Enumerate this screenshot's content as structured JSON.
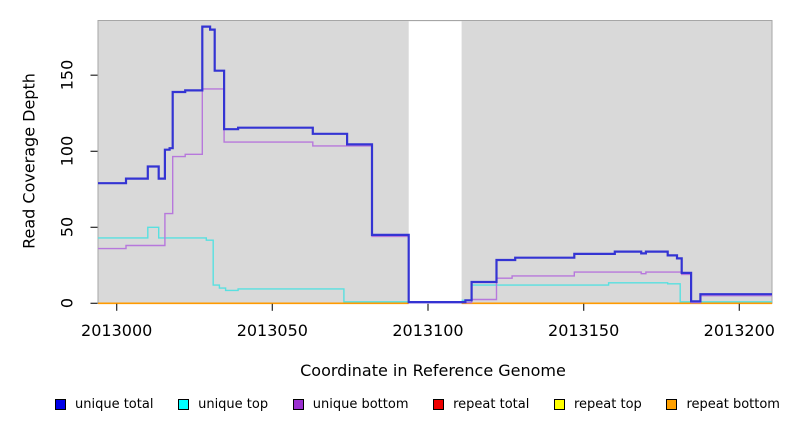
{
  "chart_data": {
    "type": "line",
    "subtype": "step-coverage",
    "title": "",
    "xlabel": "Coordinate in Reference Genome",
    "ylabel": "Read Coverage Depth",
    "xlim": [
      2012994,
      2013210.5
    ],
    "ylim": [
      0,
      186
    ],
    "x_ticks": [
      2013000,
      2013050,
      2013100,
      2013150,
      2013200
    ],
    "x_tick_labels": [
      "2013000",
      "2013050",
      "2013100",
      "2013150",
      "2013200"
    ],
    "y_ticks": [
      0,
      50,
      100,
      150
    ],
    "y_tick_labels": [
      "0",
      "50",
      "100",
      "150"
    ],
    "grid": false,
    "plot_background": "#d9d9d9",
    "plot_border_color": "#a6a6a6",
    "tick_color": "#262626",
    "legend_position": "bottom",
    "masked_region": {
      "start": 2013093.8,
      "end": 2013110.8,
      "color": "#ffffff"
    },
    "series": [
      {
        "name": "unique total",
        "color": "#3434d3",
        "legend_fill": "#0000e8",
        "line_width": 2.2,
        "z": 6,
        "steps": [
          [
            2012994,
            79
          ],
          [
            2013003,
            82
          ],
          [
            2013010,
            90
          ],
          [
            2013013.5,
            82
          ],
          [
            2013015.5,
            101
          ],
          [
            2013017,
            102
          ],
          [
            2013018,
            139
          ],
          [
            2013022,
            140
          ],
          [
            2013027.5,
            182
          ],
          [
            2013030,
            180
          ],
          [
            2013031.5,
            153
          ],
          [
            2013034.5,
            114.5
          ],
          [
            2013039,
            115.5
          ],
          [
            2013063,
            111.5
          ],
          [
            2013074,
            104.5
          ],
          [
            2013082,
            45
          ],
          [
            2013093.8,
            0.8
          ],
          [
            2013112,
            2
          ],
          [
            2013114,
            14
          ],
          [
            2013122,
            28.5
          ],
          [
            2013128,
            30
          ],
          [
            2013147,
            32.5
          ],
          [
            2013160,
            34
          ],
          [
            2013168.5,
            32.8
          ],
          [
            2013170,
            34
          ],
          [
            2013177,
            31.5
          ],
          [
            2013180,
            29.5
          ],
          [
            2013181.5,
            20
          ],
          [
            2013184.5,
            1.3
          ],
          [
            2013187.5,
            6
          ]
        ]
      },
      {
        "name": "unique top",
        "color": "#58e0e0",
        "legend_fill": "#00ffff",
        "line_width": 1.4,
        "z": 4,
        "steps": [
          [
            2012994,
            43
          ],
          [
            2013010,
            50
          ],
          [
            2013013.5,
            43
          ],
          [
            2013028.8,
            41.5
          ],
          [
            2013031,
            12
          ],
          [
            2013033,
            10
          ],
          [
            2013035,
            8.5
          ],
          [
            2013039,
            9.5
          ],
          [
            2013073,
            1
          ],
          [
            2013110.8,
            2
          ],
          [
            2013114,
            12
          ],
          [
            2013158,
            13.5
          ],
          [
            2013177,
            12.8
          ],
          [
            2013181,
            1
          ]
        ]
      },
      {
        "name": "unique bottom",
        "color": "#b778dc",
        "legend_fill": "#9b30d0",
        "line_width": 1.4,
        "z": 5,
        "steps": [
          [
            2012994,
            36
          ],
          [
            2013003,
            38
          ],
          [
            2013015.5,
            59
          ],
          [
            2013018,
            96.5
          ],
          [
            2013022,
            98
          ],
          [
            2013027.5,
            141
          ],
          [
            2013034.5,
            106
          ],
          [
            2013063,
            103.5
          ],
          [
            2013082,
            44
          ],
          [
            2013093.8,
            0.4
          ],
          [
            2013114,
            2.5
          ],
          [
            2013122,
            16.5
          ],
          [
            2013127,
            18
          ],
          [
            2013147,
            20.5
          ],
          [
            2013168.5,
            19.5
          ],
          [
            2013170,
            20.5
          ],
          [
            2013181.5,
            19
          ],
          [
            2013184.5,
            0.4
          ],
          [
            2013187.5,
            5
          ]
        ]
      },
      {
        "name": "repeat total",
        "color": "#dd0000",
        "legend_fill": "#ee0000",
        "line_width": 1.4,
        "z": 1,
        "steps": [
          [
            2012994,
            0
          ]
        ]
      },
      {
        "name": "repeat top",
        "color": "#ffff00",
        "legend_fill": "#ffff00",
        "line_width": 1.4,
        "z": 2,
        "steps": [
          [
            2012994,
            0
          ]
        ]
      },
      {
        "name": "repeat bottom",
        "color": "#ff9a00",
        "legend_fill": "#ffa000",
        "line_width": 1.6,
        "z": 3,
        "steps": [
          [
            2012994,
            0
          ]
        ]
      }
    ]
  }
}
